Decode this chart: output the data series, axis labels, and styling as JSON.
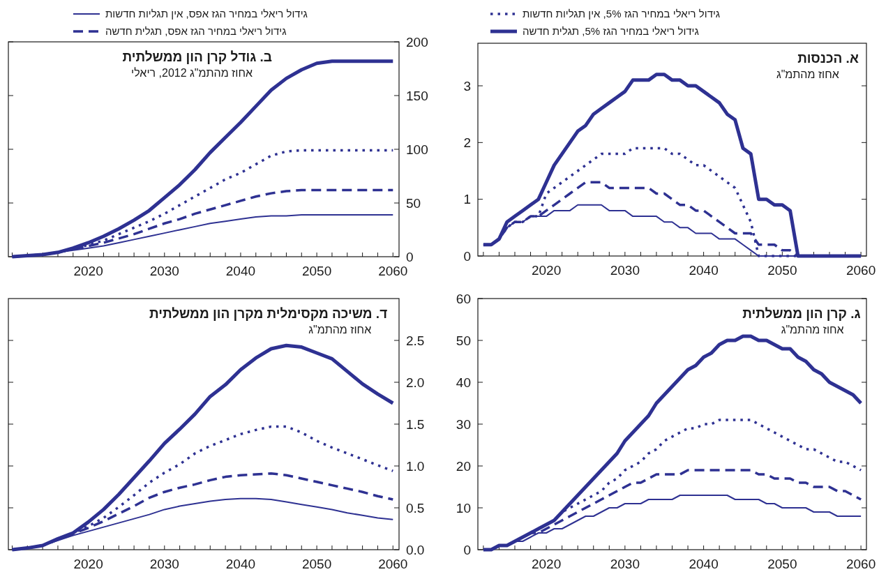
{
  "chart_data": [
    {
      "type": "line",
      "title": "א. הכנסות",
      "subtitle": "אחוז מהתמ\"ג",
      "legend": "top",
      "x": [
        2012,
        2013,
        2014,
        2015,
        2016,
        2017,
        2018,
        2019,
        2020,
        2021,
        2022,
        2023,
        2024,
        2025,
        2026,
        2027,
        2028,
        2029,
        2030,
        2031,
        2032,
        2033,
        2034,
        2035,
        2036,
        2037,
        2038,
        2039,
        2040,
        2041,
        2042,
        2043,
        2044,
        2045,
        2046,
        2047,
        2048,
        2049,
        2050,
        2051,
        2052,
        2053,
        2054,
        2055,
        2056,
        2057,
        2058,
        2059,
        2060
      ],
      "xlim": [
        2011.3,
        2060.7
      ],
      "xticks": [
        {
          "value": 2012,
          "label": null
        },
        {
          "value": 2014,
          "label": null
        },
        {
          "value": 2016,
          "label": null
        },
        {
          "value": 2018,
          "label": null
        },
        2020,
        {
          "value": 2022,
          "label": null
        },
        {
          "value": 2024,
          "label": null
        },
        {
          "value": 2026,
          "label": null
        },
        {
          "value": 2028,
          "label": null
        },
        2030,
        {
          "value": 2032,
          "label": null
        },
        {
          "value": 2034,
          "label": null
        },
        {
          "value": 2036,
          "label": null
        },
        {
          "value": 2038,
          "label": null
        },
        2040,
        {
          "value": 2042,
          "label": null
        },
        {
          "value": 2044,
          "label": null
        },
        {
          "value": 2046,
          "label": null
        },
        {
          "value": 2048,
          "label": null
        },
        2050,
        {
          "value": 2052,
          "label": null
        },
        {
          "value": 2054,
          "label": null
        },
        {
          "value": 2056,
          "label": null
        },
        {
          "value": 2058,
          "label": null
        },
        2060
      ],
      "ylim": [
        0,
        3.75
      ],
      "yticks": [
        0,
        1,
        2,
        3
      ],
      "series": [
        {
          "name": "גידול ריאלי במחיר הגז 5%, תגלית חדשה",
          "color": "#2e3192",
          "line_style": "solid",
          "values": [
            0.2,
            0.2,
            0.3,
            0.6,
            0.7,
            0.8,
            0.9,
            1.0,
            1.3,
            1.6,
            1.8,
            2.0,
            2.2,
            2.3,
            2.5,
            2.6,
            2.7,
            2.8,
            2.9,
            3.1,
            3.1,
            3.1,
            3.2,
            3.2,
            3.1,
            3.1,
            3.0,
            3.0,
            2.9,
            2.8,
            2.7,
            2.5,
            2.4,
            1.9,
            1.8,
            1.0,
            1.0,
            0.9,
            0.9,
            0.8,
            0,
            0,
            0,
            0,
            0,
            0,
            0,
            0,
            0
          ]
        },
        {
          "name": "גידול ריאלי במחיר הגז 5%, אין תגליות חדשות",
          "color": "#2e3192",
          "line_style": "dotted",
          "values": [
            0.2,
            0.2,
            0.3,
            0.5,
            0.6,
            0.6,
            0.7,
            0.7,
            1.1,
            1.2,
            1.3,
            1.4,
            1.5,
            1.6,
            1.7,
            1.8,
            1.8,
            1.8,
            1.8,
            1.9,
            1.9,
            1.9,
            1.9,
            1.9,
            1.8,
            1.8,
            1.7,
            1.6,
            1.6,
            1.5,
            1.4,
            1.3,
            1.2,
            0.9,
            0.6,
            0,
            0,
            0,
            0,
            0,
            0,
            0,
            0,
            0,
            0,
            0,
            0,
            0,
            0
          ]
        },
        {
          "color": "#2e3192",
          "line_style": "dashed",
          "values": [
            0.2,
            0.2,
            0.3,
            0.5,
            0.6,
            0.6,
            0.7,
            0.7,
            0.8,
            0.9,
            1.0,
            1.1,
            1.2,
            1.3,
            1.3,
            1.3,
            1.2,
            1.2,
            1.2,
            1.2,
            1.2,
            1.2,
            1.1,
            1.1,
            1.0,
            0.9,
            0.9,
            0.8,
            0.8,
            0.7,
            0.6,
            0.5,
            0.4,
            0.4,
            0.4,
            0.2,
            0.2,
            0.2,
            0.1,
            0.1,
            0,
            0,
            0,
            0,
            0,
            0,
            0,
            0,
            0
          ]
        },
        {
          "color": "#2e3192",
          "line_style": "solid",
          "values": [
            0.2,
            0.2,
            0.3,
            0.5,
            0.6,
            0.6,
            0.7,
            0.7,
            0.7,
            0.8,
            0.8,
            0.8,
            0.9,
            0.9,
            0.9,
            0.9,
            0.8,
            0.8,
            0.8,
            0.7,
            0.7,
            0.7,
            0.7,
            0.6,
            0.6,
            0.5,
            0.5,
            0.4,
            0.4,
            0.4,
            0.3,
            0.3,
            0.3,
            0.2,
            0.1,
            0,
            0,
            0,
            0,
            0,
            0,
            0,
            0,
            0,
            0,
            0,
            0,
            0,
            0
          ]
        }
      ]
    },
    {
      "type": "line",
      "title": "ב. גודל קרן הון ממשלתית",
      "subtitle": "אחוז מהתמ\"ג 2012, ריאלי",
      "legend": "top",
      "x": [
        2010,
        2012,
        2014,
        2016,
        2018,
        2020,
        2022,
        2024,
        2026,
        2028,
        2030,
        2032,
        2034,
        2036,
        2038,
        2040,
        2042,
        2044,
        2046,
        2048,
        2050,
        2052,
        2054,
        2056,
        2058,
        2060
      ],
      "xlim": [
        2009.5,
        2060.8
      ],
      "xticks": [
        {
          "value": 2010,
          "label": null
        },
        {
          "value": 2012,
          "label": null
        },
        {
          "value": 2014,
          "label": null
        },
        {
          "value": 2016,
          "label": null
        },
        {
          "value": 2018,
          "label": null
        },
        2020,
        {
          "value": 2022,
          "label": null
        },
        {
          "value": 2024,
          "label": null
        },
        {
          "value": 2026,
          "label": null
        },
        {
          "value": 2028,
          "label": null
        },
        2030,
        {
          "value": 2032,
          "label": null
        },
        {
          "value": 2034,
          "label": null
        },
        {
          "value": 2036,
          "label": null
        },
        {
          "value": 2038,
          "label": null
        },
        2040,
        {
          "value": 2042,
          "label": null
        },
        {
          "value": 2044,
          "label": null
        },
        {
          "value": 2046,
          "label": null
        },
        {
          "value": 2048,
          "label": null
        },
        2050,
        {
          "value": 2052,
          "label": null
        },
        {
          "value": 2054,
          "label": null
        },
        {
          "value": 2056,
          "label": null
        },
        {
          "value": 2058,
          "label": null
        },
        2060
      ],
      "ylim": [
        0,
        200
      ],
      "yticks": [
        0,
        50,
        100,
        150,
        200
      ],
      "series": [
        {
          "color": "#2e3192",
          "line_style": "solid",
          "values": [
            0,
            1,
            2,
            4,
            8,
            13,
            19,
            26,
            34,
            43,
            55,
            67,
            81,
            97,
            111,
            125,
            140,
            155,
            166,
            174,
            180,
            182,
            182,
            182,
            182,
            182
          ]
        },
        {
          "color": "#2e3192",
          "line_style": "dotted",
          "values": [
            0,
            1,
            2,
            4,
            7,
            11,
            15,
            21,
            27,
            33,
            40,
            48,
            56,
            64,
            72,
            78,
            86,
            94,
            98,
            99,
            99,
            99,
            99,
            99,
            99,
            99
          ]
        },
        {
          "name": "גידול ריאלי במחיר הגז אפס, תגלית חדשה",
          "color": "#2e3192",
          "line_style": "dashed",
          "values": [
            0,
            1,
            2,
            4,
            7,
            10,
            13,
            17,
            21,
            26,
            31,
            35,
            40,
            44,
            48,
            52,
            56,
            59,
            61,
            62,
            62,
            62,
            62,
            62,
            62,
            62
          ]
        },
        {
          "name": "גידול ריאלי במחיר הגז אפס, אין תגליות חדשות",
          "color": "#2e3192",
          "line_style": "solid",
          "values": [
            0,
            1,
            2,
            4,
            6,
            8,
            10,
            13,
            16,
            19,
            22,
            25,
            28,
            31,
            33,
            35,
            37,
            38,
            38,
            39,
            39,
            39,
            39,
            39,
            39,
            39
          ]
        }
      ]
    },
    {
      "type": "line",
      "title": "ג. קרן הון ממשלתית",
      "subtitle": "אחוז מהתמ\"ג",
      "x": [
        2012,
        2013,
        2014,
        2015,
        2016,
        2017,
        2018,
        2019,
        2020,
        2021,
        2022,
        2023,
        2024,
        2025,
        2026,
        2027,
        2028,
        2029,
        2030,
        2031,
        2032,
        2033,
        2034,
        2035,
        2036,
        2037,
        2038,
        2039,
        2040,
        2041,
        2042,
        2043,
        2044,
        2045,
        2046,
        2047,
        2048,
        2049,
        2050,
        2051,
        2052,
        2053,
        2054,
        2055,
        2056,
        2057,
        2058,
        2059,
        2060
      ],
      "xlim": [
        2011.3,
        2060.7
      ],
      "xticks": [
        {
          "value": 2012,
          "label": null
        },
        {
          "value": 2014,
          "label": null
        },
        {
          "value": 2016,
          "label": null
        },
        {
          "value": 2018,
          "label": null
        },
        2020,
        {
          "value": 2022,
          "label": null
        },
        {
          "value": 2024,
          "label": null
        },
        {
          "value": 2026,
          "label": null
        },
        {
          "value": 2028,
          "label": null
        },
        2030,
        {
          "value": 2032,
          "label": null
        },
        {
          "value": 2034,
          "label": null
        },
        {
          "value": 2036,
          "label": null
        },
        {
          "value": 2038,
          "label": null
        },
        2040,
        {
          "value": 2042,
          "label": null
        },
        {
          "value": 2044,
          "label": null
        },
        {
          "value": 2046,
          "label": null
        },
        {
          "value": 2048,
          "label": null
        },
        2050,
        {
          "value": 2052,
          "label": null
        },
        {
          "value": 2054,
          "label": null
        },
        {
          "value": 2056,
          "label": null
        },
        {
          "value": 2058,
          "label": null
        },
        2060
      ],
      "ylim": [
        0,
        60
      ],
      "yticks": [
        0,
        10,
        20,
        30,
        40,
        50,
        60
      ],
      "series": [
        {
          "color": "#2e3192",
          "line_style": "solid",
          "values": [
            0,
            0,
            1,
            1,
            2,
            3,
            4,
            5,
            6,
            7,
            9,
            11,
            13,
            15,
            17,
            19,
            21,
            23,
            26,
            28,
            30,
            32,
            35,
            37,
            39,
            41,
            43,
            44,
            46,
            47,
            49,
            50,
            50,
            51,
            51,
            50,
            50,
            49,
            48,
            48,
            46,
            45,
            43,
            42,
            40,
            39,
            38,
            37,
            35
          ]
        },
        {
          "color": "#2e3192",
          "line_style": "dotted",
          "values": [
            0,
            0,
            1,
            1,
            2,
            3,
            4,
            5,
            6,
            7,
            9,
            10,
            11,
            12,
            13,
            14,
            16,
            17,
            19,
            20,
            21,
            23,
            24,
            26,
            27,
            28,
            29,
            29,
            30,
            30,
            31,
            31,
            31,
            31,
            31,
            30,
            29,
            28,
            27,
            26,
            25,
            24,
            24,
            23,
            22,
            21,
            21,
            20,
            19
          ]
        },
        {
          "color": "#2e3192",
          "line_style": "dashed",
          "values": [
            0,
            0,
            1,
            1,
            2,
            3,
            4,
            4,
            5,
            6,
            7,
            8,
            9,
            10,
            11,
            12,
            13,
            14,
            15,
            16,
            16,
            17,
            18,
            18,
            18,
            18,
            19,
            19,
            19,
            19,
            19,
            19,
            19,
            19,
            19,
            18,
            18,
            17,
            17,
            17,
            16,
            16,
            15,
            15,
            15,
            14,
            14,
            13,
            12
          ]
        },
        {
          "color": "#2e3192",
          "line_style": "solid",
          "values": [
            0,
            0,
            1,
            1,
            2,
            2,
            3,
            4,
            4,
            5,
            5,
            6,
            7,
            8,
            8,
            9,
            10,
            10,
            11,
            11,
            11,
            12,
            12,
            12,
            12,
            13,
            13,
            13,
            13,
            13,
            13,
            13,
            12,
            12,
            12,
            12,
            11,
            11,
            10,
            10,
            10,
            10,
            9,
            9,
            9,
            8,
            8,
            8,
            8
          ]
        }
      ]
    },
    {
      "type": "line",
      "title": "ד. משיכה מקסימלית מקרן הון ממשלתית",
      "subtitle": "אחוז מהתמ\"ג",
      "x": [
        2010,
        2012,
        2014,
        2016,
        2018,
        2020,
        2022,
        2024,
        2026,
        2028,
        2030,
        2032,
        2034,
        2036,
        2038,
        2040,
        2042,
        2044,
        2046,
        2048,
        2050,
        2052,
        2054,
        2056,
        2058,
        2060
      ],
      "xlim": [
        2009.5,
        2060.8
      ],
      "xticks": [
        {
          "value": 2010,
          "label": null
        },
        {
          "value": 2012,
          "label": null
        },
        {
          "value": 2014,
          "label": null
        },
        {
          "value": 2016,
          "label": null
        },
        {
          "value": 2018,
          "label": null
        },
        2020,
        {
          "value": 2022,
          "label": null
        },
        {
          "value": 2024,
          "label": null
        },
        {
          "value": 2026,
          "label": null
        },
        {
          "value": 2028,
          "label": null
        },
        2030,
        {
          "value": 2032,
          "label": null
        },
        {
          "value": 2034,
          "label": null
        },
        {
          "value": 2036,
          "label": null
        },
        {
          "value": 2038,
          "label": null
        },
        2040,
        {
          "value": 2042,
          "label": null
        },
        {
          "value": 2044,
          "label": null
        },
        {
          "value": 2046,
          "label": null
        },
        {
          "value": 2048,
          "label": null
        },
        2050,
        {
          "value": 2052,
          "label": null
        },
        {
          "value": 2054,
          "label": null
        },
        {
          "value": 2056,
          "label": null
        },
        {
          "value": 2058,
          "label": null
        },
        2060
      ],
      "ylim": [
        0,
        3
      ],
      "yticks": [
        {
          "value": 0,
          "label": "0.0"
        },
        {
          "value": 0.5,
          "label": "0.5"
        },
        {
          "value": 1,
          "label": "1.0"
        },
        {
          "value": 1.5,
          "label": "1.5"
        },
        {
          "value": 2,
          "label": "2.0"
        },
        {
          "value": 2.5,
          "label": "2.5"
        }
      ],
      "series": [
        {
          "color": "#2e3192",
          "line_style": "solid",
          "values": [
            0,
            0.02,
            0.05,
            0.13,
            0.2,
            0.33,
            0.48,
            0.66,
            0.86,
            1.06,
            1.27,
            1.44,
            1.62,
            1.83,
            1.97,
            2.15,
            2.29,
            2.4,
            2.44,
            2.42,
            2.35,
            2.28,
            2.13,
            1.98,
            1.86,
            1.75
          ]
        },
        {
          "color": "#2e3192",
          "line_style": "dotted",
          "values": [
            0,
            0.02,
            0.05,
            0.12,
            0.2,
            0.28,
            0.38,
            0.51,
            0.65,
            0.8,
            0.92,
            1.02,
            1.15,
            1.24,
            1.31,
            1.38,
            1.43,
            1.47,
            1.47,
            1.4,
            1.3,
            1.22,
            1.15,
            1.08,
            1.01,
            0.94
          ]
        },
        {
          "color": "#2e3192",
          "line_style": "dashed",
          "values": [
            0,
            0.02,
            0.05,
            0.12,
            0.19,
            0.26,
            0.34,
            0.43,
            0.52,
            0.62,
            0.69,
            0.74,
            0.78,
            0.83,
            0.87,
            0.89,
            0.9,
            0.91,
            0.89,
            0.85,
            0.81,
            0.77,
            0.73,
            0.69,
            0.64,
            0.6
          ]
        },
        {
          "color": "#2e3192",
          "line_style": "solid",
          "values": [
            0,
            0.02,
            0.05,
            0.11,
            0.17,
            0.22,
            0.27,
            0.32,
            0.37,
            0.42,
            0.48,
            0.52,
            0.55,
            0.58,
            0.6,
            0.61,
            0.61,
            0.6,
            0.57,
            0.54,
            0.51,
            0.48,
            0.44,
            0.41,
            0.38,
            0.36
          ]
        }
      ]
    }
  ]
}
